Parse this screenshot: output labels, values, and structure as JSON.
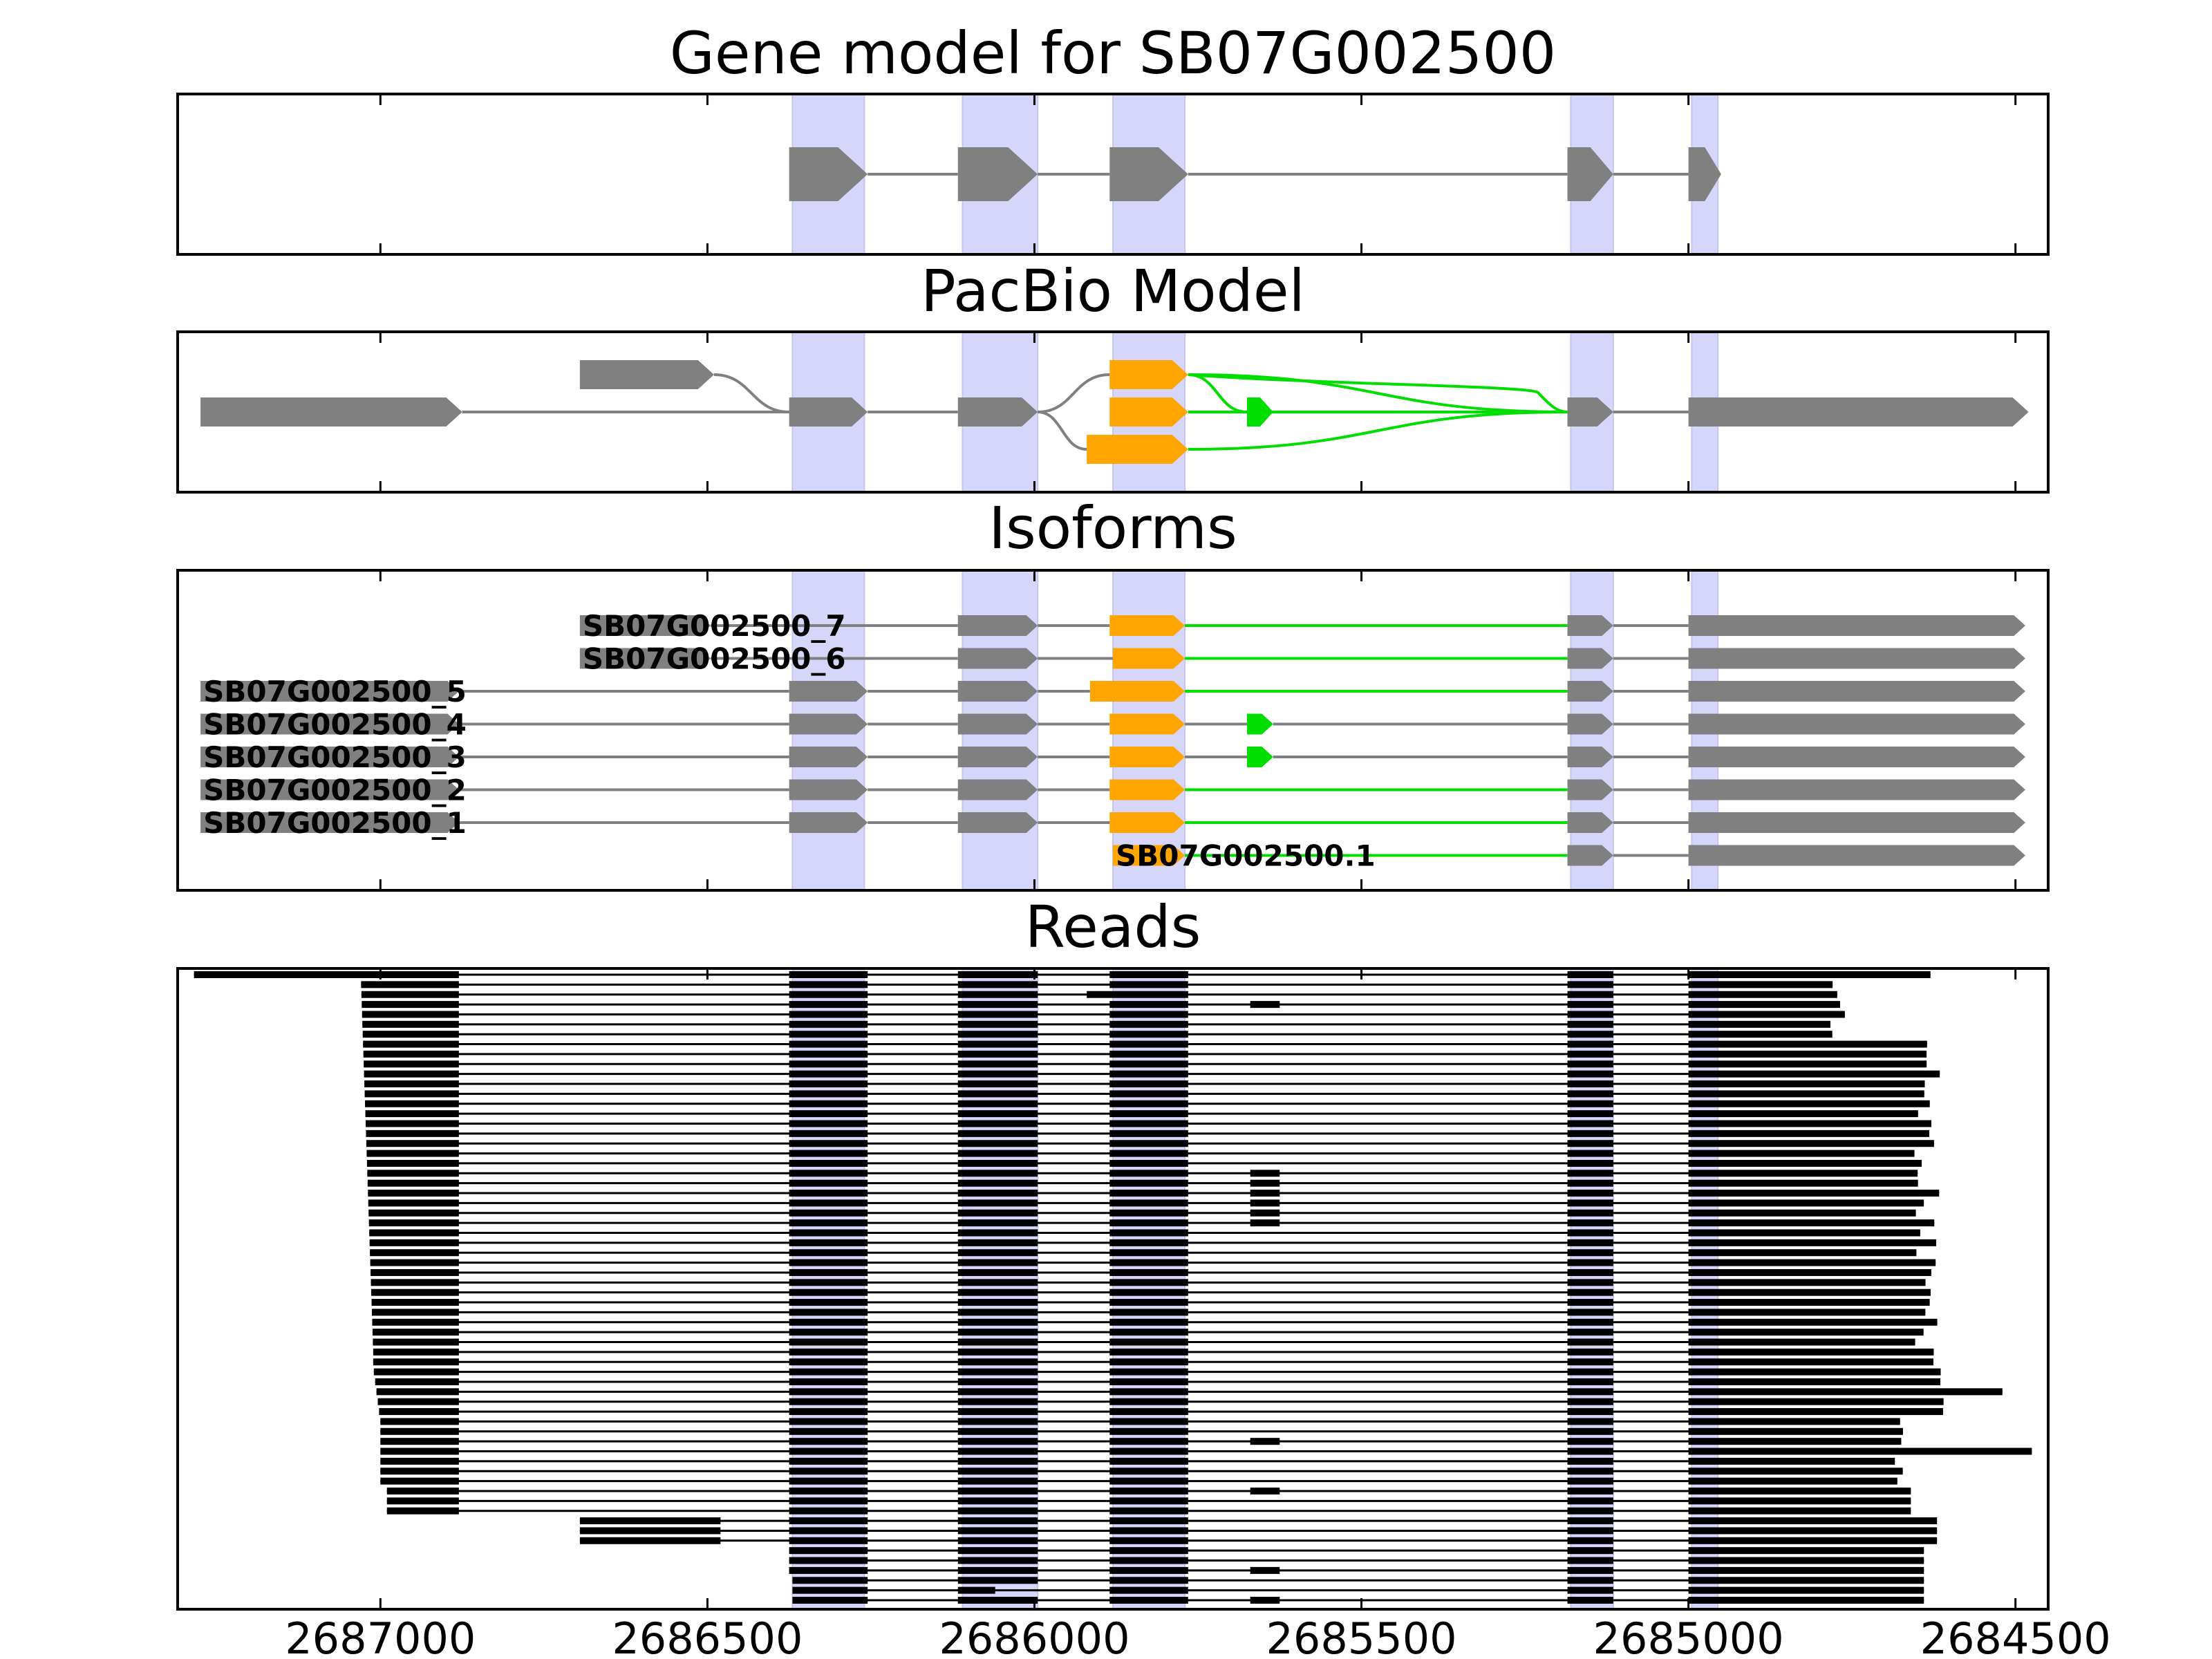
{
  "colors": {
    "gene": "#808080",
    "pacbio_alt": "#FFA500",
    "pacbio_novel": "#00DD00",
    "highlight": "#D6D6FA",
    "read": "#000000",
    "frame": "#000000"
  },
  "chart_data": {
    "type": "genome-track",
    "x_direction": "decreasing-left-to-right",
    "xlim": [
      2687310,
      2684450
    ],
    "ticks": [
      "2687000",
      "2686500",
      "2686000",
      "2685500",
      "2685000",
      "2684500"
    ],
    "tick_values": [
      2687000,
      2686500,
      2686000,
      2685500,
      2685000,
      2684500
    ],
    "exon_bands": [
      [
        2686370,
        2686260
      ],
      [
        2686110,
        2685995
      ],
      [
        2685880,
        2685770
      ],
      [
        2685180,
        2685115
      ],
      [
        2684995,
        2684955
      ]
    ],
    "panels": [
      {
        "title": "Gene model for SB07G002500",
        "rows": 1,
        "features": [
          {
            "row": 0,
            "exons": [
              [
                2686375,
                2686255
              ],
              [
                2686117,
                2685995
              ],
              [
                2685885,
                2685765
              ],
              [
                2685185,
                2685115
              ],
              [
                2685000,
                2684950
              ]
            ],
            "colors": [
              "gene",
              "gene",
              "gene",
              "gene",
              "gene"
            ]
          }
        ]
      },
      {
        "title": "PacBio Model",
        "rows": 3,
        "features": [
          {
            "row": 1,
            "exons": [
              [
                2687275,
                2686875
              ]
            ],
            "colors": [
              "gene"
            ]
          },
          {
            "row": 0,
            "exons": [
              [
                2686695,
                2686490
              ]
            ],
            "colors": [
              "gene"
            ]
          },
          {
            "row": 1,
            "exons": [
              [
                2686375,
                2686255
              ],
              [
                2686117,
                2685995
              ]
            ],
            "colors": [
              "gene",
              "gene"
            ]
          },
          {
            "row": 0,
            "exons": [
              [
                2685885,
                2685765
              ]
            ],
            "colors": [
              "pacbio_alt"
            ]
          },
          {
            "row": 1,
            "exons": [
              [
                2685885,
                2685765
              ]
            ],
            "colors": [
              "pacbio_alt"
            ]
          },
          {
            "row": 2,
            "exons": [
              [
                2685920,
                2685765
              ]
            ],
            "colors": [
              "pacbio_alt"
            ]
          },
          {
            "row": 1,
            "exons": [
              [
                2685675,
                2685635
              ]
            ],
            "colors": [
              "pacbio_novel"
            ]
          },
          {
            "row": 1,
            "exons": [
              [
                2685185,
                2685115
              ],
              [
                2685000,
                2684480
              ]
            ],
            "colors": [
              "gene",
              "gene"
            ]
          }
        ]
      },
      {
        "title": "Isoforms",
        "rows": 8,
        "isoforms": [
          {
            "label": "SB07G002500_7",
            "segments": [
              [
                2686695,
                2686495,
                "gene"
              ],
              [
                2686117,
                2685995,
                "gene"
              ],
              [
                2685885,
                2685770,
                "pacbio_alt"
              ],
              [
                2685185,
                2685115,
                "gene"
              ],
              [
                2685000,
                2684485,
                "gene"
              ]
            ],
            "introns": [
              [
                2686495,
                2686117,
                "gene"
              ],
              [
                2685995,
                2685885,
                "gene"
              ],
              [
                2685770,
                2685185,
                "pacbio_novel"
              ],
              [
                2685115,
                2685000,
                "gene"
              ]
            ]
          },
          {
            "label": "SB07G002500_6",
            "segments": [
              [
                2686695,
                2686495,
                "gene"
              ],
              [
                2686117,
                2685995,
                "gene"
              ],
              [
                2685880,
                2685770,
                "pacbio_alt"
              ],
              [
                2685185,
                2685115,
                "gene"
              ],
              [
                2685000,
                2684485,
                "gene"
              ]
            ],
            "introns": [
              [
                2686495,
                2686117,
                "gene"
              ],
              [
                2685995,
                2685880,
                "gene"
              ],
              [
                2685770,
                2685185,
                "pacbio_novel"
              ],
              [
                2685115,
                2685000,
                "gene"
              ]
            ]
          },
          {
            "label": "SB07G002500_5",
            "segments": [
              [
                2687275,
                2686880,
                "gene"
              ],
              [
                2686375,
                2686255,
                "gene"
              ],
              [
                2686117,
                2685995,
                "gene"
              ],
              [
                2685915,
                2685770,
                "pacbio_alt"
              ],
              [
                2685185,
                2685115,
                "gene"
              ],
              [
                2685000,
                2684485,
                "gene"
              ]
            ],
            "introns": [
              [
                2686880,
                2686375,
                "gene"
              ],
              [
                2686255,
                2686117,
                "gene"
              ],
              [
                2685995,
                2685915,
                "gene"
              ],
              [
                2685770,
                2685185,
                "pacbio_novel"
              ],
              [
                2685115,
                2685000,
                "gene"
              ]
            ]
          },
          {
            "label": "SB07G002500_4",
            "segments": [
              [
                2687275,
                2686880,
                "gene"
              ],
              [
                2686375,
                2686255,
                "gene"
              ],
              [
                2686117,
                2685995,
                "gene"
              ],
              [
                2685885,
                2685770,
                "pacbio_alt"
              ],
              [
                2685675,
                2685635,
                "pacbio_novel"
              ],
              [
                2685185,
                2685115,
                "gene"
              ],
              [
                2685000,
                2684485,
                "gene"
              ]
            ],
            "introns": [
              [
                2686880,
                2686375,
                "gene"
              ],
              [
                2686255,
                2686117,
                "gene"
              ],
              [
                2685995,
                2685885,
                "gene"
              ],
              [
                2685770,
                2685675,
                "gene"
              ],
              [
                2685635,
                2685185,
                "gene"
              ],
              [
                2685115,
                2685000,
                "gene"
              ]
            ]
          },
          {
            "label": "SB07G002500_3",
            "segments": [
              [
                2687275,
                2686880,
                "gene"
              ],
              [
                2686375,
                2686255,
                "gene"
              ],
              [
                2686117,
                2685995,
                "gene"
              ],
              [
                2685885,
                2685770,
                "pacbio_alt"
              ],
              [
                2685675,
                2685635,
                "pacbio_novel"
              ],
              [
                2685185,
                2685115,
                "gene"
              ],
              [
                2685000,
                2684485,
                "gene"
              ]
            ],
            "introns": [
              [
                2686880,
                2686375,
                "gene"
              ],
              [
                2686255,
                2686117,
                "gene"
              ],
              [
                2685995,
                2685885,
                "gene"
              ],
              [
                2685770,
                2685675,
                "gene"
              ],
              [
                2685635,
                2685185,
                "gene"
              ],
              [
                2685115,
                2685000,
                "gene"
              ]
            ]
          },
          {
            "label": "SB07G002500_2",
            "segments": [
              [
                2687275,
                2686880,
                "gene"
              ],
              [
                2686375,
                2686255,
                "gene"
              ],
              [
                2686117,
                2685995,
                "gene"
              ],
              [
                2685885,
                2685770,
                "pacbio_alt"
              ],
              [
                2685185,
                2685115,
                "gene"
              ],
              [
                2685000,
                2684485,
                "gene"
              ]
            ],
            "introns": [
              [
                2686880,
                2686375,
                "gene"
              ],
              [
                2686255,
                2686117,
                "gene"
              ],
              [
                2685995,
                2685885,
                "gene"
              ],
              [
                2685770,
                2685185,
                "pacbio_novel"
              ],
              [
                2685115,
                2685000,
                "gene"
              ]
            ]
          },
          {
            "label": "SB07G002500_1",
            "segments": [
              [
                2687275,
                2686880,
                "gene"
              ],
              [
                2686375,
                2686255,
                "gene"
              ],
              [
                2686117,
                2685995,
                "gene"
              ],
              [
                2685885,
                2685770,
                "pacbio_alt"
              ],
              [
                2685185,
                2685115,
                "gene"
              ],
              [
                2685000,
                2684485,
                "gene"
              ]
            ],
            "introns": [
              [
                2686880,
                2686375,
                "gene"
              ],
              [
                2686255,
                2686117,
                "gene"
              ],
              [
                2685995,
                2685885,
                "gene"
              ],
              [
                2685770,
                2685185,
                "pacbio_novel"
              ],
              [
                2685115,
                2685000,
                "gene"
              ]
            ]
          },
          {
            "label": "SB07G002500.1",
            "segments": [
              [
                2685880,
                2685770,
                "pacbio_alt"
              ],
              [
                2685185,
                2685115,
                "gene"
              ],
              [
                2685000,
                2684485,
                "gene"
              ]
            ],
            "introns": [
              [
                2685770,
                2685185,
                "pacbio_novel"
              ],
              [
                2685115,
                2685000,
                "gene"
              ]
            ]
          }
        ]
      },
      {
        "title": "Reads",
        "row_count": 64
      }
    ]
  }
}
